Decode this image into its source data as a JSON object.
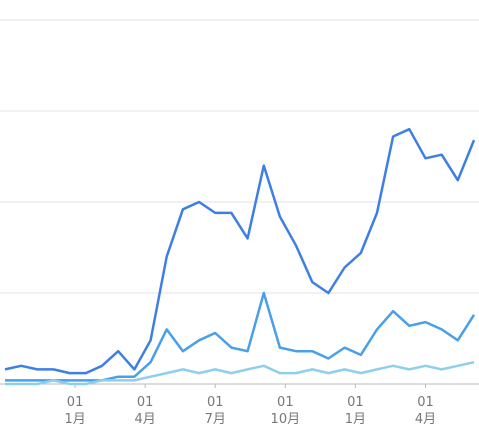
{
  "chart_data": {
    "type": "line",
    "x": [
      0,
      3,
      6,
      9,
      12,
      15,
      18,
      21,
      24,
      27,
      30,
      33,
      36,
      39,
      42,
      45,
      48,
      51,
      54,
      57,
      60,
      63,
      66,
      69,
      72,
      75,
      78,
      81,
      84,
      87
    ],
    "xlim": [
      0,
      87
    ],
    "xticks": [
      {
        "value": 13,
        "label": "01\n1月"
      },
      {
        "value": 26,
        "label": "01\n4月"
      },
      {
        "value": 39,
        "label": "01\n7月"
      },
      {
        "value": 52,
        "label": "01\n10月"
      },
      {
        "value": 65,
        "label": "01\n1月"
      },
      {
        "value": 78,
        "label": "01\n4月"
      }
    ],
    "ylim": [
      0,
      100
    ],
    "yticks": [
      0,
      25,
      50,
      75,
      100
    ],
    "grid": true,
    "series": [
      {
        "color": "#3d7fe3",
        "values": [
          4,
          5,
          4,
          4,
          3,
          3,
          5,
          9,
          4,
          12,
          35,
          48,
          50,
          47,
          47,
          40,
          60,
          46,
          38,
          28,
          25,
          32,
          36,
          47,
          68,
          70,
          62,
          63,
          56,
          67
        ]
      },
      {
        "color": "#4a9fe9",
        "values": [
          1,
          1,
          1,
          1,
          1,
          1,
          1,
          2,
          2,
          6,
          15,
          9,
          12,
          14,
          10,
          9,
          25,
          10,
          9,
          9,
          7,
          10,
          8,
          15,
          20,
          16,
          17,
          15,
          12,
          19
        ]
      },
      {
        "color": "#8ed0ec",
        "values": [
          0,
          0,
          0,
          1,
          0,
          0,
          1,
          1,
          1,
          2,
          3,
          4,
          3,
          4,
          3,
          4,
          5,
          3,
          3,
          4,
          3,
          4,
          3,
          4,
          5,
          4,
          5,
          4,
          5,
          6
        ]
      }
    ]
  }
}
